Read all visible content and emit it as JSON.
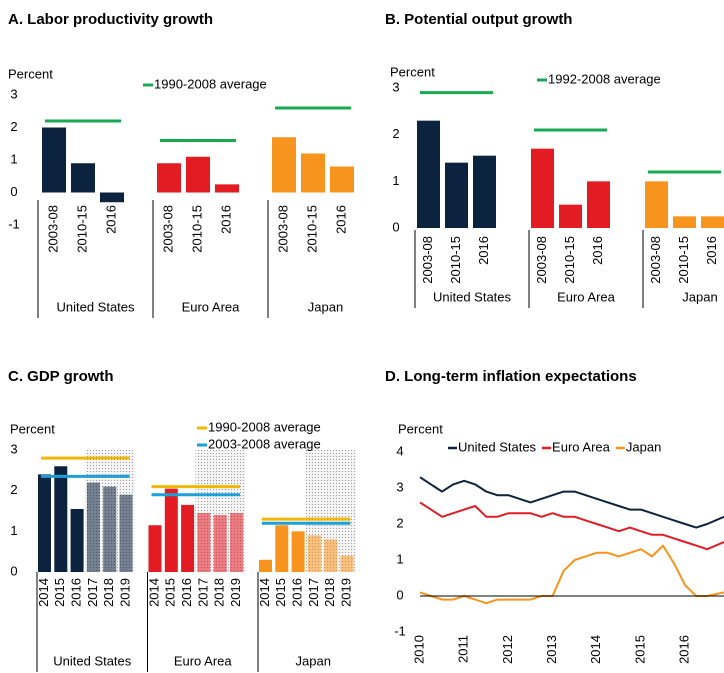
{
  "chart_data": [
    {
      "type": "bar",
      "title": "A. Labor productivity growth",
      "y_label": "Percent",
      "categories": [
        "2003-08",
        "2010-15",
        "2016"
      ],
      "groups": [
        {
          "name": "United States",
          "color": "#0c2340",
          "values": [
            2.0,
            0.9,
            -0.3
          ]
        },
        {
          "name": "Euro Area",
          "color": "#e31b23",
          "values": [
            0.9,
            1.1,
            0.25
          ]
        },
        {
          "name": "Japan",
          "color": "#f7941d",
          "values": [
            1.7,
            1.2,
            0.8
          ]
        }
      ],
      "averages": [
        {
          "name": "1990-2008 average",
          "color": "#1aaa55",
          "values": [
            2.2,
            1.6,
            2.6
          ]
        }
      ],
      "ylim": [
        -1,
        3
      ],
      "yticks": [
        -1,
        0,
        1,
        2,
        3
      ]
    },
    {
      "type": "bar",
      "title": "B. Potential output growth",
      "y_label": "Percent",
      "categories": [
        "2003-08",
        "2010-15",
        "2016"
      ],
      "groups": [
        {
          "name": "United States",
          "color": "#0c2340",
          "values": [
            2.3,
            1.4,
            1.55
          ]
        },
        {
          "name": "Euro Area",
          "color": "#e31b23",
          "values": [
            1.7,
            0.5,
            1.0
          ]
        },
        {
          "name": "Japan",
          "color": "#f7941d",
          "values": [
            1.0,
            0.25,
            0.25
          ]
        }
      ],
      "averages": [
        {
          "name": "1992-2008 average",
          "color": "#1aaa55",
          "values": [
            2.9,
            2.1,
            1.2
          ]
        }
      ],
      "ylim": [
        0,
        3
      ],
      "yticks": [
        0,
        1,
        2,
        3
      ]
    },
    {
      "type": "bar",
      "title": "C. GDP growth",
      "y_label": "Percent",
      "categories": [
        "2014",
        "2015",
        "2016",
        "2017",
        "2018",
        "2019"
      ],
      "shaded_from_index": 3,
      "groups": [
        {
          "name": "United States",
          "color": "#0c2340",
          "values": [
            2.4,
            2.6,
            1.55,
            2.2,
            2.1,
            1.9
          ]
        },
        {
          "name": "Euro Area",
          "color": "#e31b23",
          "values": [
            1.15,
            2.05,
            1.65,
            1.45,
            1.4,
            1.45
          ]
        },
        {
          "name": "Japan",
          "color": "#f7941d",
          "values": [
            0.3,
            1.15,
            1.0,
            0.9,
            0.8,
            0.4
          ]
        }
      ],
      "averages": [
        {
          "name": "1990-2008 average",
          "color": "#f2b705",
          "values": [
            2.8,
            2.1,
            1.3
          ]
        },
        {
          "name": "2003-2008 average",
          "color": "#1ba0d8",
          "values": [
            2.35,
            1.9,
            1.2
          ]
        }
      ],
      "ylim": [
        0,
        3
      ],
      "yticks": [
        0,
        1,
        2,
        3
      ]
    },
    {
      "type": "line",
      "title": "D. Long-term inflation expectations",
      "y_label": "Percent",
      "x": [
        2010,
        2010.25,
        2010.5,
        2010.75,
        2011,
        2011.25,
        2011.5,
        2011.75,
        2012,
        2012.25,
        2012.5,
        2012.75,
        2013,
        2013.25,
        2013.5,
        2013.75,
        2014,
        2014.25,
        2014.5,
        2014.75,
        2015,
        2015.25,
        2015.5,
        2015.75,
        2016,
        2016.25,
        2016.5,
        2016.88
      ],
      "series": [
        {
          "name": "United States",
          "color": "#0c2340",
          "values": [
            3.3,
            3.1,
            2.9,
            3.1,
            3.2,
            3.1,
            2.9,
            2.8,
            2.8,
            2.7,
            2.6,
            2.7,
            2.8,
            2.9,
            2.9,
            2.8,
            2.7,
            2.6,
            2.5,
            2.4,
            2.4,
            2.3,
            2.2,
            2.1,
            2.0,
            1.9,
            2.0,
            2.2
          ]
        },
        {
          "name": "Euro Area",
          "color": "#e31b23",
          "values": [
            2.6,
            2.4,
            2.2,
            2.3,
            2.4,
            2.5,
            2.2,
            2.2,
            2.3,
            2.3,
            2.3,
            2.2,
            2.3,
            2.2,
            2.2,
            2.1,
            2.0,
            1.9,
            1.8,
            1.9,
            1.8,
            1.7,
            1.7,
            1.6,
            1.5,
            1.4,
            1.3,
            1.5
          ]
        },
        {
          "name": "Japan",
          "color": "#f7941d",
          "values": [
            0.1,
            0.0,
            -0.1,
            -0.1,
            0.0,
            -0.1,
            -0.2,
            -0.1,
            -0.1,
            -0.1,
            -0.1,
            0.0,
            0.0,
            0.7,
            1.0,
            1.1,
            1.2,
            1.2,
            1.1,
            1.2,
            1.3,
            1.1,
            1.4,
            0.9,
            0.3,
            0.0,
            0.0,
            0.1
          ]
        }
      ],
      "xlim": [
        2010,
        2016.88
      ],
      "xticks": [
        2010,
        2011,
        2012,
        2013,
        2014,
        2015,
        2016
      ],
      "ylim": [
        -1,
        4
      ],
      "yticks": [
        -1,
        0,
        1,
        2,
        3,
        4
      ]
    }
  ]
}
